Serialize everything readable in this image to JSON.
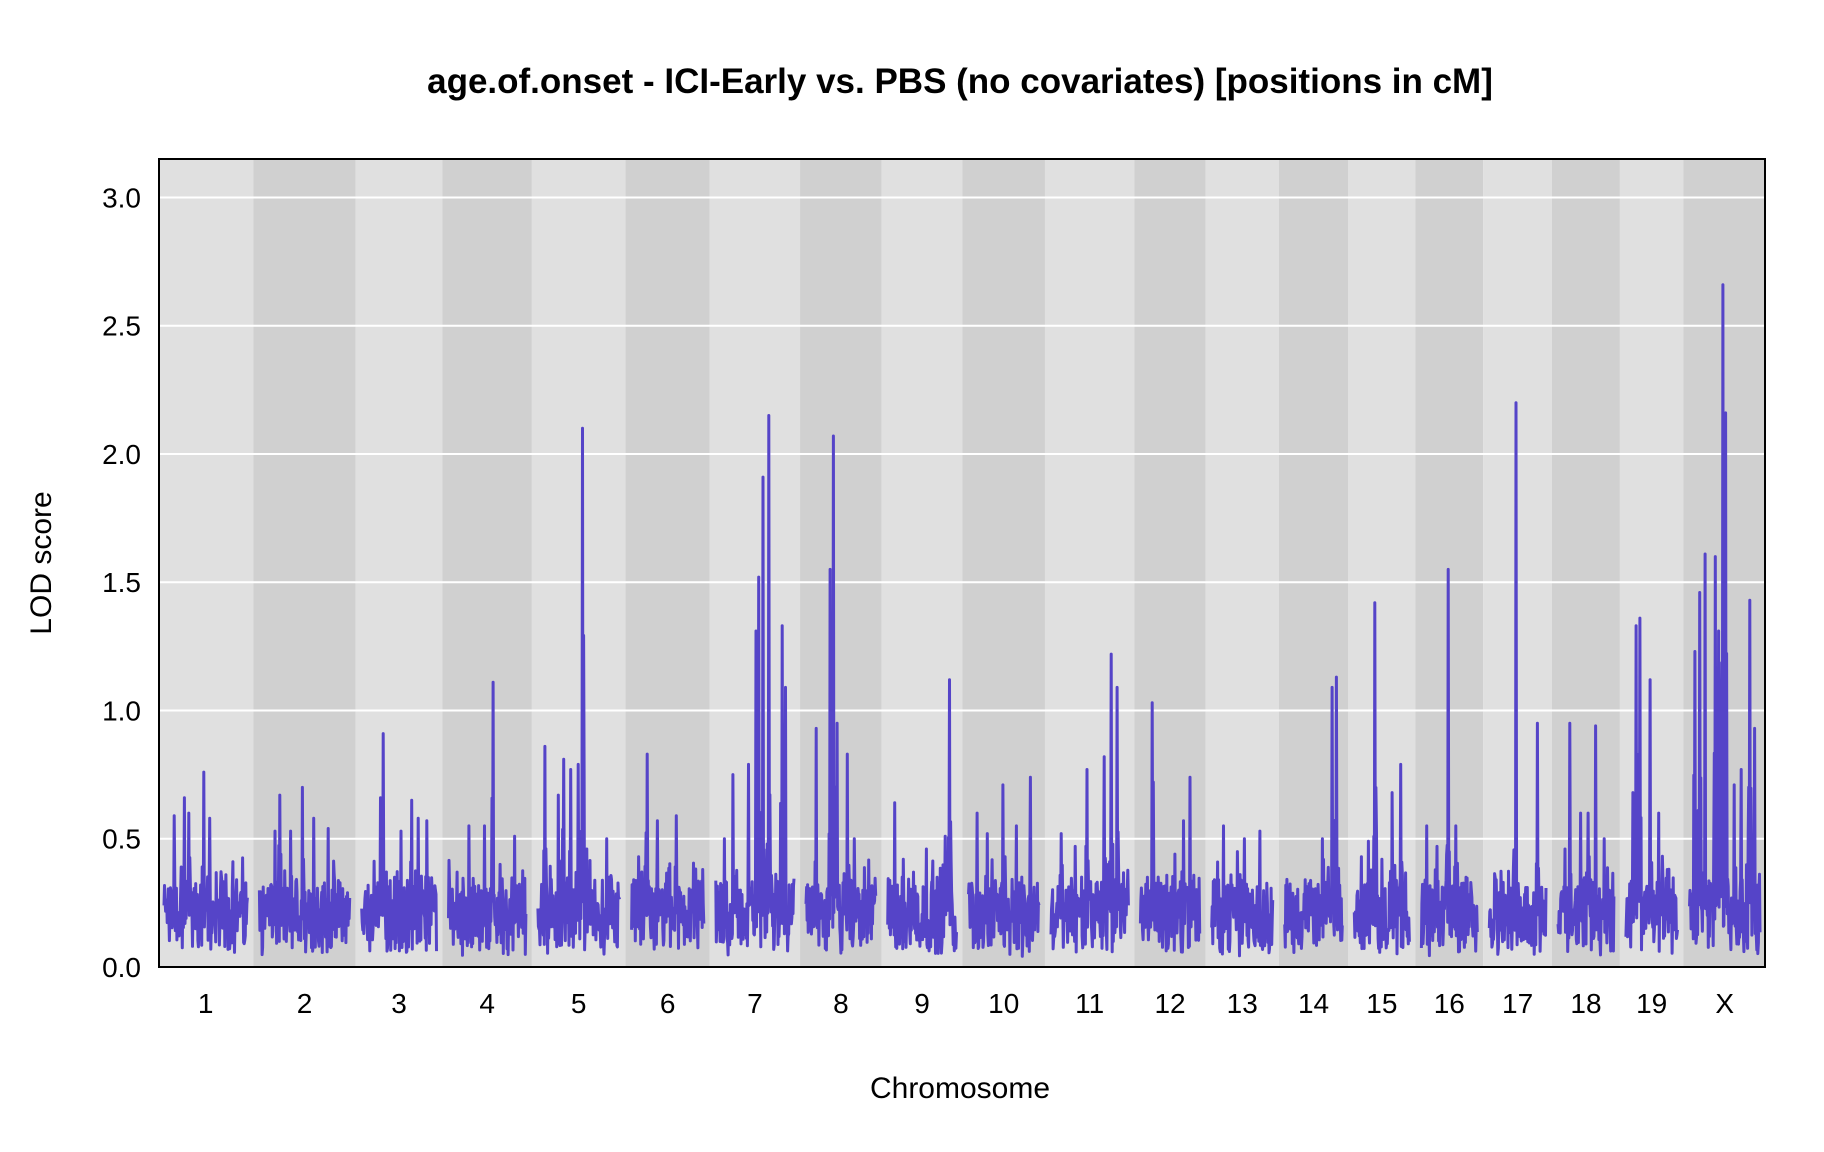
{
  "chart_data": {
    "type": "line",
    "title": "age.of.onset - ICI-Early vs. PBS (no covariates) [positions in cM]",
    "xlabel": "Chromosome",
    "ylabel": "LOD score",
    "ylim": [
      0,
      3.15
    ],
    "yticks": [
      "0.0",
      "0.5",
      "1.0",
      "1.5",
      "2.0",
      "2.5",
      "3.0"
    ],
    "grid": "horizontal",
    "legend": "none",
    "colors": {
      "line": "#5544c8",
      "band_light": "#e0e0e0",
      "band_dark": "#d0d0d0",
      "grid": "#ffffff"
    },
    "chromosomes": [
      {
        "name": "1",
        "start_cM": 0,
        "length_cM": 97,
        "peaks": [
          [
            12,
            0.59
          ],
          [
            20,
            0.39
          ],
          [
            24,
            0.66
          ],
          [
            29,
            0.6
          ],
          [
            46,
            0.76
          ],
          [
            53,
            0.58
          ],
          [
            80,
            0.41
          ],
          [
            87,
            0.25
          ]
        ]
      },
      {
        "name": "2",
        "start_cM": 97,
        "length_cM": 105,
        "peaks": [
          [
            8,
            0.28
          ],
          [
            18,
            0.53
          ],
          [
            24,
            0.67
          ],
          [
            36,
            0.53
          ],
          [
            50,
            0.7
          ],
          [
            63,
            0.58
          ],
          [
            80,
            0.54
          ],
          [
            95,
            0.26
          ]
        ]
      },
      {
        "name": "3",
        "start_cM": 202,
        "length_cM": 87,
        "peaks": [
          [
            10,
            0.22
          ],
          [
            22,
            0.66
          ],
          [
            25,
            0.91
          ],
          [
            38,
            0.35
          ],
          [
            46,
            0.53
          ],
          [
            58,
            0.65
          ],
          [
            66,
            0.58
          ],
          [
            76,
            0.57
          ]
        ]
      },
      {
        "name": "4",
        "start_cM": 289,
        "length_cM": 90,
        "peaks": [
          [
            10,
            0.37
          ],
          [
            24,
            0.55
          ],
          [
            42,
            0.55
          ],
          [
            52,
            1.11
          ],
          [
            60,
            0.4
          ],
          [
            77,
            0.51
          ]
        ]
      },
      {
        "name": "5",
        "start_cM": 379,
        "length_cM": 95,
        "peaks": [
          [
            8,
            0.86
          ],
          [
            24,
            0.67
          ],
          [
            30,
            0.81
          ],
          [
            38,
            0.77
          ],
          [
            47,
            0.79
          ],
          [
            52,
            2.1
          ],
          [
            57,
            0.46
          ],
          [
            80,
            0.5
          ]
        ]
      },
      {
        "name": "6",
        "start_cM": 474,
        "length_cM": 84,
        "peaks": [
          [
            8,
            0.43
          ],
          [
            18,
            0.83
          ],
          [
            30,
            0.57
          ],
          [
            52,
            0.59
          ],
          [
            70,
            0.3
          ]
        ]
      },
      {
        "name": "7",
        "start_cM": 558,
        "length_cM": 91,
        "peaks": [
          [
            10,
            0.5
          ],
          [
            20,
            0.75
          ],
          [
            38,
            0.79
          ],
          [
            47,
            1.31
          ],
          [
            50,
            1.52
          ],
          [
            55,
            1.91
          ],
          [
            62,
            2.15
          ],
          [
            77,
            1.33
          ],
          [
            81,
            1.09
          ]
        ]
      },
      {
        "name": "8",
        "start_cM": 649,
        "length_cM": 81,
        "peaks": [
          [
            12,
            0.93
          ],
          [
            28,
            1.55
          ],
          [
            32,
            2.07
          ],
          [
            36,
            0.95
          ],
          [
            48,
            0.83
          ],
          [
            56,
            0.5
          ]
        ]
      },
      {
        "name": "9",
        "start_cM": 730,
        "length_cM": 80,
        "peaks": [
          [
            8,
            0.64
          ],
          [
            18,
            0.42
          ],
          [
            30,
            0.37
          ],
          [
            45,
            0.46
          ],
          [
            67,
            0.51
          ],
          [
            72,
            1.12
          ]
        ]
      },
      {
        "name": "10",
        "start_cM": 810,
        "length_cM": 82,
        "peaks": [
          [
            10,
            0.6
          ],
          [
            22,
            0.52
          ],
          [
            40,
            0.71
          ],
          [
            56,
            0.55
          ],
          [
            72,
            0.74
          ]
        ]
      },
      {
        "name": "11",
        "start_cM": 892,
        "length_cM": 90,
        "peaks": [
          [
            12,
            0.52
          ],
          [
            28,
            0.47
          ],
          [
            42,
            0.77
          ],
          [
            62,
            0.82
          ],
          [
            70,
            1.22
          ],
          [
            77,
            1.09
          ]
        ]
      },
      {
        "name": "12",
        "start_cM": 982,
        "length_cM": 69,
        "peaks": [
          [
            8,
            0.35
          ],
          [
            14,
            1.03
          ],
          [
            40,
            0.44
          ],
          [
            50,
            0.57
          ],
          [
            58,
            0.74
          ]
        ]
      },
      {
        "name": "13",
        "start_cM": 1051,
        "length_cM": 71,
        "peaks": [
          [
            8,
            0.34
          ],
          [
            14,
            0.55
          ],
          [
            30,
            0.45
          ],
          [
            38,
            0.5
          ],
          [
            56,
            0.53
          ]
        ]
      },
      {
        "name": "14",
        "start_cM": 1122,
        "length_cM": 67,
        "peaks": [
          [
            8,
            0.28
          ],
          [
            24,
            0.34
          ],
          [
            44,
            0.5
          ],
          [
            55,
            1.09
          ],
          [
            60,
            1.13
          ]
        ]
      },
      {
        "name": "15",
        "start_cM": 1189,
        "length_cM": 64,
        "peaks": [
          [
            8,
            0.43
          ],
          [
            16,
            0.49
          ],
          [
            24,
            1.42
          ],
          [
            32,
            0.42
          ],
          [
            44,
            0.68
          ],
          [
            54,
            0.79
          ]
        ]
      },
      {
        "name": "16",
        "start_cM": 1253,
        "length_cM": 65,
        "peaks": [
          [
            6,
            0.55
          ],
          [
            18,
            0.47
          ],
          [
            31,
            1.55
          ],
          [
            40,
            0.55
          ],
          [
            52,
            0.35
          ]
        ]
      },
      {
        "name": "17",
        "start_cM": 1318,
        "length_cM": 66,
        "peaks": [
          [
            8,
            0.34
          ],
          [
            16,
            0.33
          ],
          [
            31,
            2.2
          ],
          [
            44,
            0.31
          ],
          [
            56,
            0.95
          ]
        ]
      },
      {
        "name": "18",
        "start_cM": 1384,
        "length_cM": 65,
        "peaks": [
          [
            8,
            0.46
          ],
          [
            14,
            0.95
          ],
          [
            26,
            0.6
          ],
          [
            35,
            0.6
          ],
          [
            44,
            0.94
          ],
          [
            54,
            0.5
          ]
        ]
      },
      {
        "name": "19",
        "start_cM": 1449,
        "length_cM": 60,
        "peaks": [
          [
            8,
            0.68
          ],
          [
            12,
            1.33
          ],
          [
            16,
            1.36
          ],
          [
            28,
            1.12
          ],
          [
            38,
            0.6
          ],
          [
            48,
            0.38
          ]
        ]
      },
      {
        "name": "X",
        "start_cM": 1509,
        "length_cM": 82,
        "peaks": [
          [
            6,
            1.23
          ],
          [
            12,
            1.46
          ],
          [
            18,
            1.61
          ],
          [
            30,
            1.6
          ],
          [
            34,
            1.31
          ],
          [
            39,
            2.66
          ],
          [
            42,
            2.16
          ],
          [
            52,
            0.71
          ],
          [
            60,
            0.77
          ],
          [
            70,
            1.43
          ],
          [
            76,
            0.93
          ]
        ]
      }
    ]
  }
}
